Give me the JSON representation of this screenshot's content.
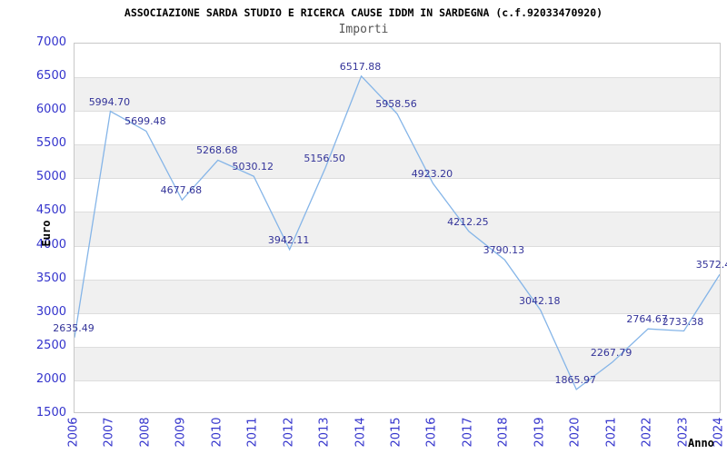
{
  "chart_data": {
    "type": "line",
    "title": "ASSOCIAZIONE SARDA STUDIO E RICERCA CAUSE IDDM IN SARDEGNA (c.f.92033470920)",
    "subtitle": "Importi",
    "xlabel": "Anno",
    "ylabel": "Euro",
    "categories": [
      "2006",
      "2007",
      "2008",
      "2009",
      "2010",
      "2011",
      "2012",
      "2013",
      "2014",
      "2015",
      "2016",
      "2017",
      "2018",
      "2019",
      "2020",
      "2021",
      "2022",
      "2023",
      "2024"
    ],
    "series": [
      {
        "name": "Importi",
        "values": [
          2635.49,
          5994.7,
          5699.48,
          4677.68,
          5268.68,
          5030.12,
          3942.11,
          5156.5,
          6517.88,
          5958.56,
          4923.2,
          4212.25,
          3790.13,
          3042.18,
          1865.97,
          2267.79,
          2764.67,
          2733.38,
          3572.4
        ]
      }
    ],
    "point_labels": [
      "2635.49",
      "5994.70",
      "5699.48",
      "4677.68",
      "5268.68",
      "5030.12",
      "3942.11",
      "5156.50",
      "6517.88",
      "5958.56",
      "4923.20",
      "4212.25",
      "3790.13",
      "3042.18",
      "1865.97",
      "2267.79",
      "2764.67",
      "2733.38",
      "3572.4"
    ],
    "ylim": [
      1500,
      7000
    ],
    "ytick_step": 500,
    "ytick_labels": [
      "7000",
      "6500",
      "6000",
      "5500",
      "5000",
      "4500",
      "4000",
      "3500",
      "3000",
      "2500",
      "2000",
      "1500"
    ],
    "legend": "none",
    "grid": "horizontal-bands",
    "colors": {
      "line": "#85b5e8",
      "point_label": "#333399",
      "tick_label": "#3333cc",
      "title": "#000000",
      "subtitle": "#555555",
      "axis_title": "#000000",
      "band": "#f0f0f0",
      "grid_line": "#dddddd",
      "plot_border": "#c8c8c8",
      "background": "#ffffff"
    }
  }
}
